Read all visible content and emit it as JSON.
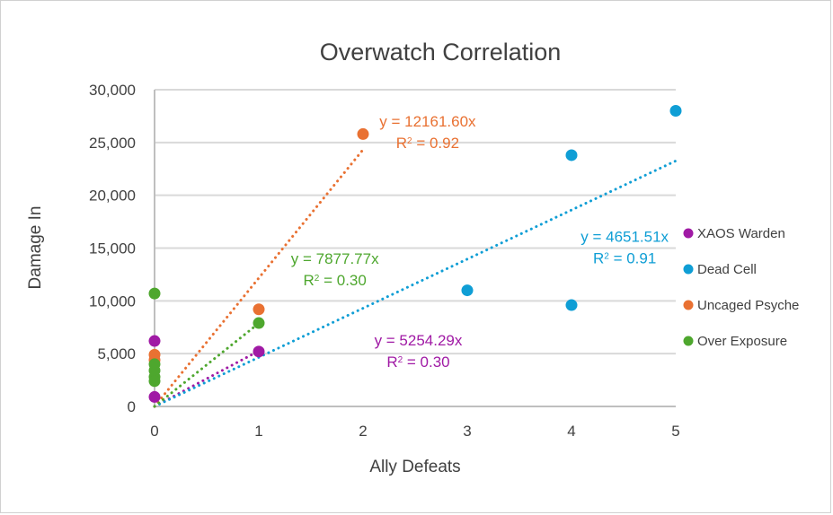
{
  "chart_data": {
    "type": "scatter",
    "title": "Overwatch Correlation",
    "xlabel": "Ally Defeats",
    "ylabel": "Damage In",
    "xlim": [
      0,
      5
    ],
    "ylim": [
      0,
      30000
    ],
    "x_ticks": [
      0,
      1,
      2,
      3,
      4,
      5
    ],
    "x_tick_labels": [
      "0",
      "1",
      "2",
      "3",
      "4",
      "5"
    ],
    "y_ticks": [
      0,
      5000,
      10000,
      15000,
      20000,
      25000,
      30000
    ],
    "y_tick_labels": [
      "0",
      "5,000",
      "10,000",
      "15,000",
      "20,000",
      "25,000",
      "30,000"
    ],
    "grid": "horizontal",
    "legend_position": "right",
    "series": [
      {
        "name": "XAOS Warden",
        "color": "#a01aa5",
        "points": [
          [
            0,
            6200
          ],
          [
            1,
            5200
          ],
          [
            0,
            900
          ]
        ],
        "trendline": {
          "slope": 5254.29,
          "intercept": 0,
          "x_range": [
            0,
            1
          ],
          "equation": "y = 5254.29x",
          "r2_label": "R",
          "r2_value": " = 0.30"
        }
      },
      {
        "name": "Dead Cell",
        "color": "#0f9ed5",
        "points": [
          [
            4,
            23800
          ],
          [
            5,
            28000
          ],
          [
            3,
            11000
          ],
          [
            4,
            9600
          ]
        ],
        "trendline": {
          "slope": 4651.51,
          "intercept": 0,
          "x_range": [
            0,
            5
          ],
          "equation": "y = 4651.51x",
          "r2_label": "R",
          "r2_value": " = 0.91"
        }
      },
      {
        "name": "Uncaged Psyche",
        "color": "#e97132",
        "points": [
          [
            2,
            25800
          ],
          [
            1,
            9200
          ],
          [
            0,
            4900
          ],
          [
            0,
            4400
          ]
        ],
        "trendline": {
          "slope": 12161.6,
          "intercept": 0,
          "x_range": [
            0,
            2
          ],
          "equation": "y = 12161.60x",
          "r2_label": "R",
          "r2_value": " = 0.92"
        }
      },
      {
        "name": "Over Exposure",
        "color": "#4ea72e",
        "points": [
          [
            0,
            10700
          ],
          [
            1,
            7900
          ],
          [
            0,
            4000
          ],
          [
            0,
            3400
          ],
          [
            0,
            2800
          ],
          [
            0,
            2400
          ]
        ],
        "trendline": {
          "slope": 7877.77,
          "intercept": 0,
          "x_range": [
            0,
            1
          ],
          "equation": "y = 7877.77x",
          "r2_label": "R",
          "r2_value": " = 0.30"
        }
      }
    ],
    "annotations": [
      {
        "series": "Uncaged Psyche",
        "equation": "y = 12161.60x",
        "r2": "R² = 0.92",
        "anchor_data": [
          2.62,
          26500
        ]
      },
      {
        "series": "Dead Cell",
        "equation": "y = 4651.51x",
        "r2": "R² = 0.91",
        "anchor_data": [
          4.51,
          15600
        ]
      },
      {
        "series": "Over Exposure",
        "equation": "y = 7877.77x",
        "r2": "R² = 0.30",
        "anchor_data": [
          1.73,
          13500
        ]
      },
      {
        "series": "XAOS Warden",
        "equation": "y = 5254.29x",
        "r2": "R² = 0.30",
        "anchor_data": [
          2.53,
          5800
        ]
      }
    ]
  }
}
